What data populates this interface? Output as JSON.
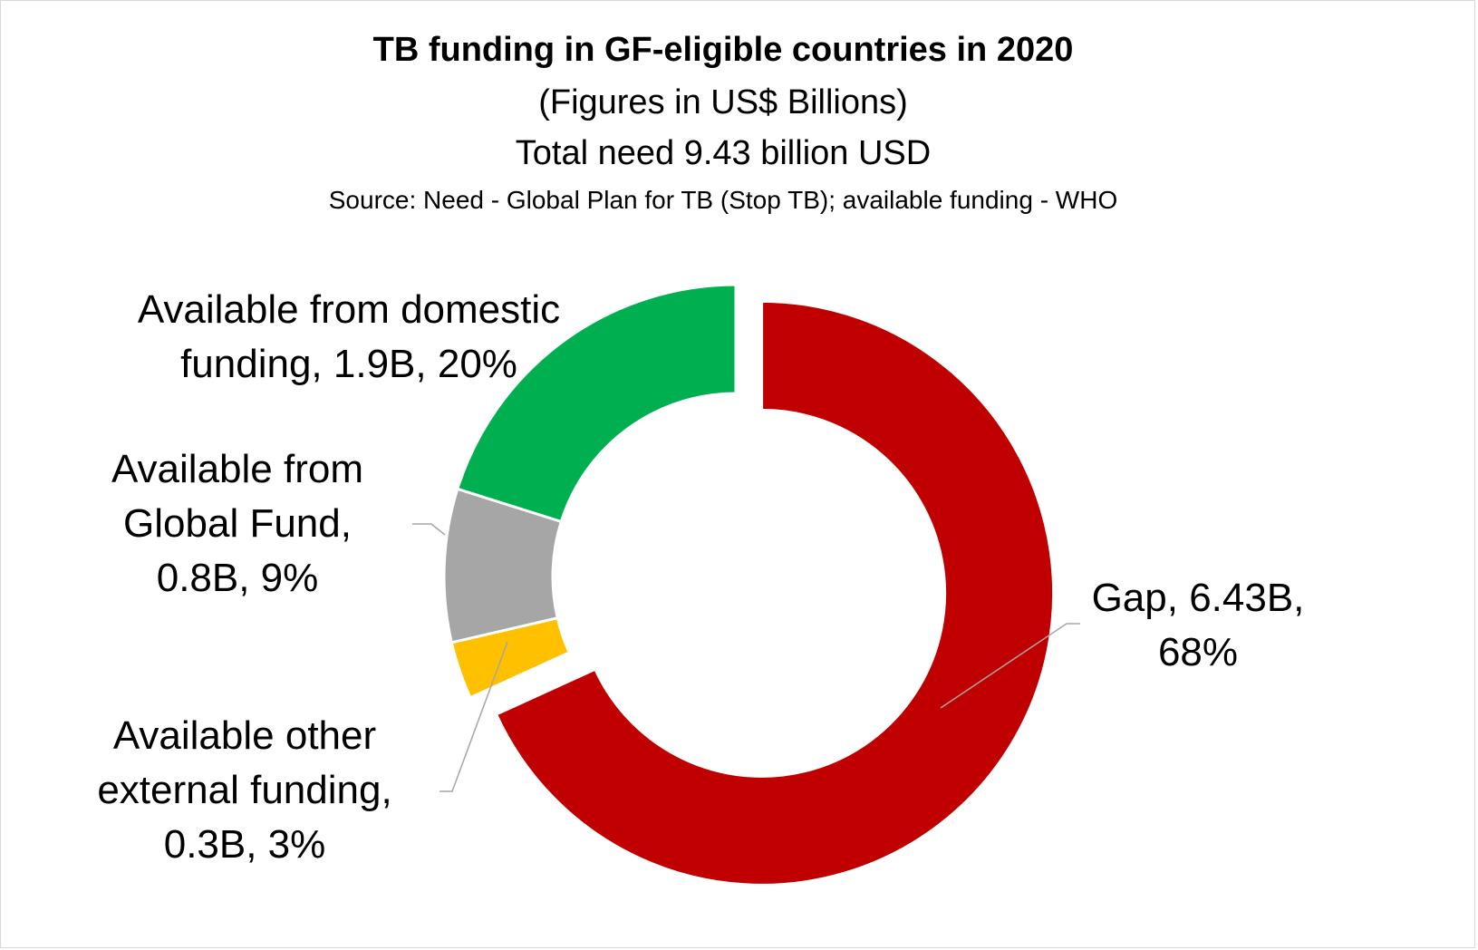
{
  "chart": {
    "title": "TB funding in GF-eligible countries in 2020",
    "subtitle1": "(Figures in US$ Billions)",
    "subtitle2": "Total need 9.43 billion USD",
    "source": "Source: Need - Global Plan for TB (Stop TB); available funding - WHO"
  },
  "labels": {
    "domestic": {
      "line1": "Available from domestic",
      "line2": "funding, 1.9B, 20%"
    },
    "global_fund": {
      "line1": "Available from",
      "line2": "Global Fund,",
      "line3": "0.8B, 9%"
    },
    "other": {
      "line1": "Available other",
      "line2": "external funding,",
      "line3": "0.3B, 3%"
    },
    "gap": {
      "line1": "Gap, 6.43B,",
      "line2": "68%"
    }
  },
  "chart_data": {
    "type": "pie",
    "donut": true,
    "title": "TB funding in GF-eligible countries in 2020",
    "slices": [
      {
        "name": "Gap",
        "value": 6.43,
        "percent": 68,
        "color": "#c00000",
        "exploded": true
      },
      {
        "name": "Available other external funding",
        "value": 0.3,
        "percent": 3,
        "color": "#ffc000"
      },
      {
        "name": "Available from Global Fund",
        "value": 0.8,
        "percent": 9,
        "color": "#a6a6a6"
      },
      {
        "name": "Available from domestic funding",
        "value": 1.9,
        "percent": 20,
        "color": "#00b050"
      }
    ]
  }
}
